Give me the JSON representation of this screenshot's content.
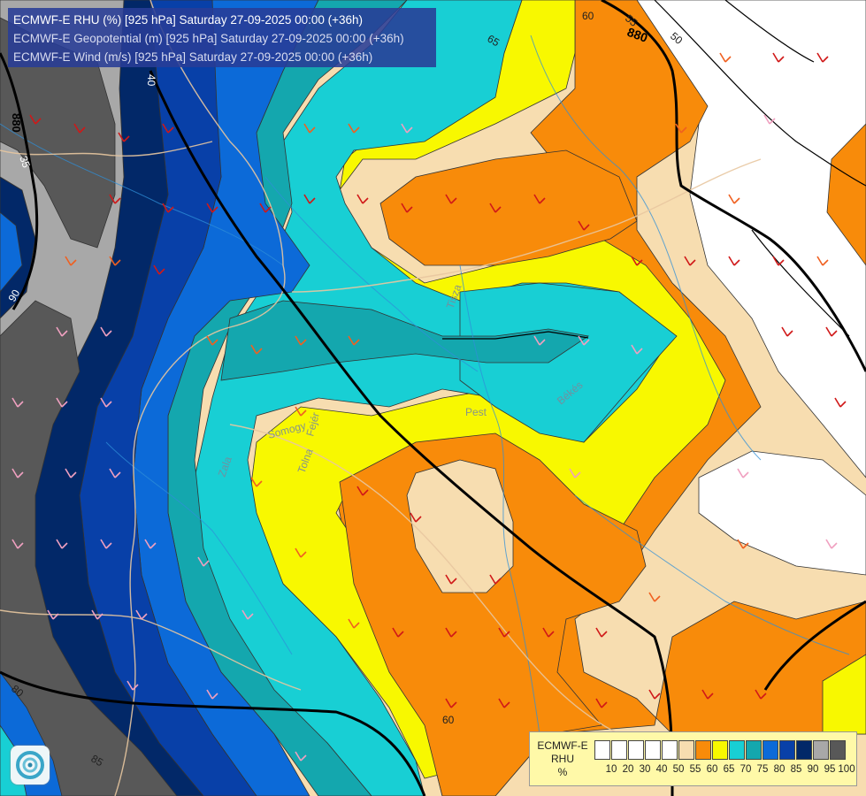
{
  "header": {
    "line1": "ECMWF-E RHU (%) [925 hPa] Saturday 27-09-2025 00:00 (+36h)",
    "line2": "ECMWF-E Geopotential (m) [925 hPa] Saturday 27-09-2025 00:00 (+36h)",
    "line3": "ECMWF-E Wind (m/s) [925 hPa] Saturday 27-09-2025 00:00 (+36h)"
  },
  "map_labels": {
    "c_60_top": "60",
    "c_55": "55",
    "c_880_top": "880",
    "c_50": "50",
    "c_65": "65",
    "c_40": "40",
    "c_880_left": "880",
    "c_35": "35",
    "c_90": "90",
    "c_60_bottom": "60",
    "c_80": "80",
    "c_85": "85"
  },
  "place_labels": {
    "tisza": "Tisza",
    "pest": "Pest",
    "bekes": "Békés",
    "somogy": "Somogy",
    "fejer": "Fejér",
    "tolna": "Tolna",
    "zala": "Zala"
  },
  "legend": {
    "line1": "ECMWF-E",
    "line2": "RHU",
    "line3": "%",
    "colors": [
      "#ffffff",
      "#ffffff",
      "#ffffff",
      "#ffffff",
      "#ffffff",
      "#f7ddb0",
      "#f88b0a",
      "#f8f800",
      "#18cfd4",
      "#14a7ae",
      "#0c6ad8",
      "#0840a8",
      "#022868",
      "#a8a8a8",
      "#585858"
    ],
    "ticks": [
      "10",
      "20",
      "30",
      "40",
      "50",
      "55",
      "60",
      "65",
      "70",
      "75",
      "80",
      "85",
      "90",
      "95",
      "100"
    ]
  },
  "palette": {
    "white": "#ffffff",
    "peach": "#f7ddb0",
    "orange": "#f88b0a",
    "yellow": "#f8f800",
    "cyan": "#18cfd4",
    "teal": "#14a7ae",
    "blue": "#0c6ad8",
    "darkblue": "#0840a8",
    "navy": "#022868",
    "grey": "#a8a8a8",
    "darkgrey": "#585858"
  }
}
